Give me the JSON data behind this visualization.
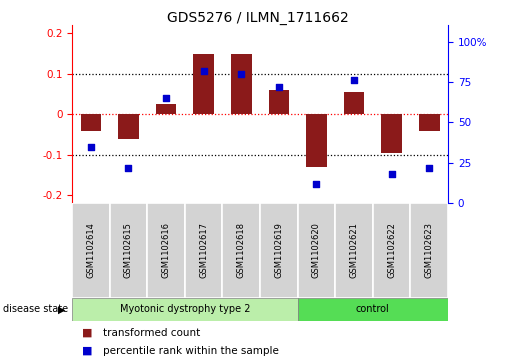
{
  "title": "GDS5276 / ILMN_1711662",
  "samples": [
    "GSM1102614",
    "GSM1102615",
    "GSM1102616",
    "GSM1102617",
    "GSM1102618",
    "GSM1102619",
    "GSM1102620",
    "GSM1102621",
    "GSM1102622",
    "GSM1102623"
  ],
  "red_values": [
    -0.04,
    -0.06,
    0.025,
    0.15,
    0.15,
    0.06,
    -0.13,
    0.055,
    -0.095,
    -0.04
  ],
  "blue_values": [
    35,
    22,
    65,
    82,
    80,
    72,
    12,
    76,
    18,
    22
  ],
  "ylim_left": [
    -0.22,
    0.22
  ],
  "ylim_right": [
    0,
    110
  ],
  "yticks_left": [
    -0.2,
    -0.1,
    0.0,
    0.1,
    0.2
  ],
  "yticks_right": [
    0,
    25,
    50,
    75,
    100
  ],
  "bar_color": "#8B1A1A",
  "dot_color": "#0000CD",
  "bar_width": 0.55,
  "label_red": "transformed count",
  "label_blue": "percentile rank within the sample",
  "disease_state_label": "disease state",
  "group1_label": "Myotonic dystrophy type 2",
  "group2_label": "control",
  "group1_color": "#bbeeaa",
  "group2_color": "#55dd55",
  "n_group1": 6,
  "n_group2": 4
}
